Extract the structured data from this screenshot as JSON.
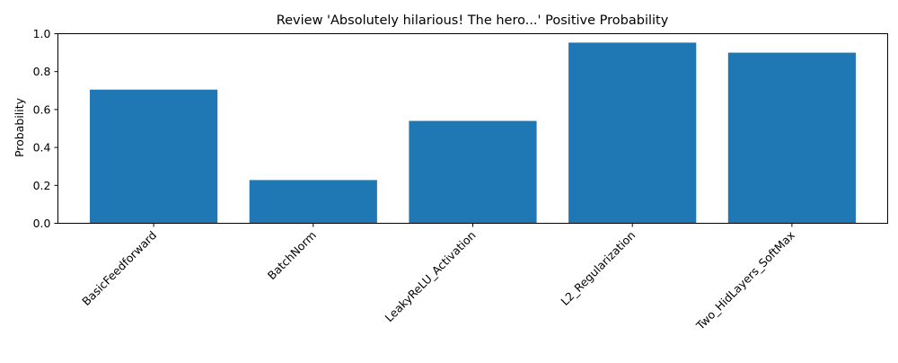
{
  "chart_data": {
    "type": "bar",
    "title": "Review 'Absolutely hilarious! The hero...' Positive Probability",
    "xlabel": "",
    "ylabel": "Probability",
    "categories": [
      "BasicFeedforward",
      "BatchNorm",
      "LeakyReLU_Activation",
      "L2_Regularization",
      "Two_HidLayers_SoftMax"
    ],
    "values": [
      0.705,
      0.228,
      0.54,
      0.953,
      0.9
    ],
    "ylim": [
      0,
      1.0
    ],
    "yticks": [
      "0.0",
      "0.2",
      "0.4",
      "0.6",
      "0.8",
      "1.0"
    ],
    "grid": false,
    "bar_color": "#1f77b4"
  }
}
